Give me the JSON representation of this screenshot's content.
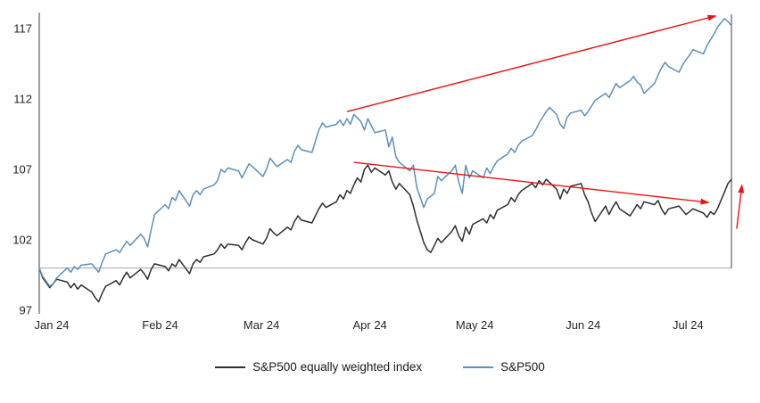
{
  "chart_data": {
    "type": "line",
    "x_axis": {
      "tick_labels": [
        "Jan 24",
        "Feb 24",
        "Mar 24",
        "Apr 24",
        "May 24",
        "Jun 24",
        "Jul 24"
      ],
      "tick_days": [
        0,
        31,
        60,
        91,
        121,
        152,
        182
      ],
      "domain_days": [
        0,
        198
      ]
    },
    "y_axis": {
      "tick_values": [
        97,
        102,
        107,
        112,
        117
      ],
      "range": [
        96.2,
        118.2
      ]
    },
    "reference_line": {
      "value": 100,
      "color": "#a6a6a6"
    },
    "axis_color": "#404040",
    "annotation_color": "#ee1111",
    "series": [
      {
        "name": "S&P500 equally weighted index",
        "color": "#2e2e2e",
        "points": [
          [
            0,
            100.0
          ],
          [
            1,
            99.3
          ],
          [
            3,
            98.6
          ],
          [
            4,
            98.9
          ],
          [
            5,
            99.2
          ],
          [
            8,
            99.0
          ],
          [
            9,
            98.6
          ],
          [
            10,
            98.9
          ],
          [
            11,
            98.5
          ],
          [
            12,
            98.8
          ],
          [
            15,
            98.3
          ],
          [
            16,
            97.9
          ],
          [
            17,
            97.6
          ],
          [
            18,
            98.2
          ],
          [
            19,
            98.7
          ],
          [
            22,
            99.1
          ],
          [
            23,
            98.8
          ],
          [
            24,
            99.3
          ],
          [
            25,
            99.7
          ],
          [
            26,
            99.3
          ],
          [
            29,
            99.9
          ],
          [
            30,
            99.6
          ],
          [
            31,
            99.2
          ],
          [
            32,
            99.9
          ],
          [
            33,
            100.3
          ],
          [
            36,
            100.1
          ],
          [
            37,
            99.8
          ],
          [
            38,
            100.3
          ],
          [
            39,
            100.1
          ],
          [
            40,
            100.6
          ],
          [
            43,
            99.6
          ],
          [
            44,
            100.3
          ],
          [
            45,
            100.6
          ],
          [
            46,
            100.4
          ],
          [
            47,
            100.8
          ],
          [
            50,
            101.0
          ],
          [
            51,
            101.3
          ],
          [
            52,
            101.7
          ],
          [
            53,
            101.4
          ],
          [
            54,
            101.7
          ],
          [
            57,
            101.6
          ],
          [
            58,
            101.3
          ],
          [
            59,
            101.8
          ],
          [
            60,
            102.2
          ],
          [
            61,
            102.0
          ],
          [
            64,
            101.7
          ],
          [
            65,
            102.1
          ],
          [
            66,
            102.8
          ],
          [
            67,
            102.5
          ],
          [
            68,
            102.3
          ],
          [
            71,
            102.9
          ],
          [
            72,
            102.7
          ],
          [
            73,
            103.3
          ],
          [
            74,
            103.7
          ],
          [
            75,
            103.4
          ],
          [
            78,
            103.2
          ],
          [
            79,
            103.7
          ],
          [
            80,
            104.2
          ],
          [
            81,
            104.6
          ],
          [
            82,
            104.3
          ],
          [
            85,
            104.7
          ],
          [
            86,
            105.2
          ],
          [
            87,
            104.9
          ],
          [
            88,
            105.5
          ],
          [
            89,
            105.3
          ],
          [
            90,
            105.9
          ],
          [
            91,
            106.4
          ],
          [
            92,
            106.1
          ],
          [
            93,
            107.0
          ],
          [
            94,
            107.3
          ],
          [
            95,
            106.8
          ],
          [
            96,
            107.1
          ],
          [
            99,
            106.6
          ],
          [
            100,
            106.9
          ],
          [
            101,
            106.1
          ],
          [
            102,
            105.6
          ],
          [
            103,
            106.0
          ],
          [
            106,
            105.2
          ],
          [
            107,
            104.4
          ],
          [
            108,
            103.4
          ],
          [
            109,
            102.6
          ],
          [
            110,
            101.8
          ],
          [
            111,
            101.3
          ],
          [
            112,
            101.1
          ],
          [
            113,
            101.6
          ],
          [
            114,
            102.1
          ],
          [
            115,
            101.8
          ],
          [
            118,
            102.6
          ],
          [
            119,
            103.0
          ],
          [
            120,
            102.3
          ],
          [
            121,
            101.9
          ],
          [
            122,
            102.9
          ],
          [
            123,
            102.4
          ],
          [
            124,
            103.1
          ],
          [
            127,
            103.5
          ],
          [
            128,
            103.2
          ],
          [
            129,
            103.8
          ],
          [
            130,
            103.5
          ],
          [
            131,
            104.1
          ],
          [
            134,
            104.5
          ],
          [
            135,
            105.0
          ],
          [
            136,
            104.7
          ],
          [
            137,
            105.2
          ],
          [
            138,
            105.5
          ],
          [
            141,
            106.0
          ],
          [
            142,
            105.7
          ],
          [
            143,
            106.2
          ],
          [
            144,
            105.9
          ],
          [
            145,
            106.3
          ],
          [
            148,
            105.6
          ],
          [
            149,
            104.9
          ],
          [
            150,
            105.6
          ],
          [
            151,
            105.3
          ],
          [
            152,
            105.8
          ],
          [
            155,
            106.0
          ],
          [
            156,
            105.2
          ],
          [
            157,
            104.7
          ],
          [
            158,
            103.9
          ],
          [
            159,
            103.3
          ],
          [
            162,
            104.4
          ],
          [
            163,
            103.8
          ],
          [
            164,
            104.3
          ],
          [
            165,
            104.7
          ],
          [
            166,
            104.2
          ],
          [
            169,
            103.7
          ],
          [
            170,
            104.1
          ],
          [
            171,
            104.5
          ],
          [
            172,
            104.2
          ],
          [
            173,
            104.7
          ],
          [
            176,
            104.5
          ],
          [
            177,
            104.8
          ],
          [
            178,
            104.2
          ],
          [
            179,
            103.8
          ],
          [
            180,
            104.2
          ],
          [
            183,
            104.4
          ],
          [
            184,
            104.1
          ],
          [
            185,
            103.8
          ],
          [
            186,
            104.0
          ],
          [
            187,
            104.2
          ],
          [
            190,
            103.9
          ],
          [
            191,
            103.6
          ],
          [
            192,
            104.0
          ],
          [
            193,
            103.8
          ],
          [
            194,
            104.2
          ],
          [
            196,
            105.4
          ],
          [
            197,
            106.0
          ],
          [
            198,
            106.3
          ]
        ]
      },
      {
        "name": "S&P500",
        "color": "#5b8fbe",
        "points": [
          [
            0,
            100.0
          ],
          [
            1,
            99.4
          ],
          [
            3,
            98.7
          ],
          [
            4,
            98.9
          ],
          [
            5,
            99.3
          ],
          [
            8,
            100.0
          ],
          [
            9,
            99.7
          ],
          [
            10,
            100.1
          ],
          [
            11,
            99.9
          ],
          [
            12,
            100.2
          ],
          [
            15,
            100.3
          ],
          [
            16,
            100.0
          ],
          [
            17,
            99.7
          ],
          [
            18,
            100.4
          ],
          [
            19,
            101.0
          ],
          [
            22,
            101.3
          ],
          [
            23,
            101.1
          ],
          [
            24,
            101.5
          ],
          [
            25,
            101.9
          ],
          [
            26,
            101.6
          ],
          [
            29,
            102.4
          ],
          [
            30,
            102.1
          ],
          [
            31,
            101.5
          ],
          [
            32,
            102.7
          ],
          [
            33,
            103.8
          ],
          [
            36,
            104.5
          ],
          [
            37,
            104.2
          ],
          [
            38,
            105.0
          ],
          [
            39,
            104.8
          ],
          [
            40,
            105.5
          ],
          [
            43,
            104.4
          ],
          [
            44,
            105.2
          ],
          [
            45,
            105.5
          ],
          [
            46,
            105.2
          ],
          [
            47,
            105.6
          ],
          [
            50,
            105.9
          ],
          [
            51,
            106.2
          ],
          [
            52,
            107.0
          ],
          [
            53,
            106.8
          ],
          [
            54,
            107.1
          ],
          [
            57,
            106.9
          ],
          [
            58,
            106.4
          ],
          [
            59,
            106.9
          ],
          [
            60,
            107.4
          ],
          [
            61,
            107.2
          ],
          [
            64,
            106.5
          ],
          [
            65,
            107.0
          ],
          [
            66,
            107.8
          ],
          [
            67,
            107.5
          ],
          [
            68,
            107.2
          ],
          [
            71,
            107.7
          ],
          [
            72,
            107.5
          ],
          [
            73,
            108.3
          ],
          [
            74,
            108.7
          ],
          [
            75,
            108.4
          ],
          [
            78,
            108.2
          ],
          [
            79,
            109.0
          ],
          [
            80,
            109.8
          ],
          [
            81,
            110.3
          ],
          [
            82,
            110.0
          ],
          [
            85,
            110.2
          ],
          [
            86,
            110.5
          ],
          [
            87,
            110.1
          ],
          [
            88,
            110.6
          ],
          [
            89,
            110.2
          ],
          [
            90,
            110.9
          ],
          [
            92,
            110.4
          ],
          [
            93,
            109.8
          ],
          [
            94,
            110.6
          ],
          [
            95,
            110.1
          ],
          [
            96,
            109.6
          ],
          [
            99,
            109.8
          ],
          [
            100,
            108.6
          ],
          [
            101,
            109.3
          ],
          [
            102,
            107.9
          ],
          [
            103,
            107.5
          ],
          [
            106,
            106.9
          ],
          [
            107,
            107.3
          ],
          [
            108,
            105.7
          ],
          [
            109,
            105.0
          ],
          [
            110,
            104.3
          ],
          [
            111,
            104.9
          ],
          [
            113,
            105.3
          ],
          [
            114,
            106.5
          ],
          [
            115,
            106.2
          ],
          [
            118,
            106.9
          ],
          [
            119,
            107.3
          ],
          [
            120,
            106.1
          ],
          [
            121,
            105.3
          ],
          [
            122,
            107.3
          ],
          [
            123,
            106.4
          ],
          [
            124,
            106.9
          ],
          [
            127,
            106.4
          ],
          [
            128,
            107.1
          ],
          [
            129,
            106.7
          ],
          [
            130,
            107.2
          ],
          [
            131,
            107.6
          ],
          [
            134,
            108.1
          ],
          [
            135,
            108.5
          ],
          [
            136,
            108.2
          ],
          [
            137,
            108.7
          ],
          [
            138,
            109.0
          ],
          [
            141,
            109.4
          ],
          [
            142,
            109.8
          ],
          [
            143,
            110.3
          ],
          [
            144,
            110.7
          ],
          [
            145,
            111.1
          ],
          [
            146,
            111.4
          ],
          [
            148,
            110.9
          ],
          [
            149,
            110.2
          ],
          [
            150,
            109.9
          ],
          [
            151,
            110.7
          ],
          [
            152,
            111.0
          ],
          [
            155,
            111.2
          ],
          [
            156,
            110.8
          ],
          [
            157,
            111.1
          ],
          [
            158,
            111.5
          ],
          [
            159,
            111.9
          ],
          [
            162,
            112.4
          ],
          [
            163,
            112.1
          ],
          [
            164,
            112.6
          ],
          [
            165,
            113.1
          ],
          [
            166,
            112.8
          ],
          [
            169,
            113.3
          ],
          [
            170,
            113.6
          ],
          [
            171,
            113.2
          ],
          [
            172,
            113.0
          ],
          [
            173,
            112.4
          ],
          [
            176,
            113.1
          ],
          [
            177,
            113.7
          ],
          [
            178,
            114.2
          ],
          [
            179,
            114.6
          ],
          [
            180,
            114.3
          ],
          [
            183,
            113.9
          ],
          [
            184,
            114.4
          ],
          [
            185,
            114.8
          ],
          [
            186,
            115.1
          ],
          [
            187,
            115.5
          ],
          [
            190,
            115.2
          ],
          [
            191,
            115.8
          ],
          [
            192,
            116.2
          ],
          [
            193,
            116.6
          ],
          [
            194,
            117.1
          ],
          [
            196,
            117.7
          ],
          [
            197,
            117.5
          ],
          [
            198,
            117.2
          ]
        ]
      }
    ],
    "annotations": [
      {
        "type": "arrow",
        "from_day": 88,
        "from_value": 111.1,
        "to_day": 193.5,
        "to_value": 117.9
      },
      {
        "type": "arrow",
        "from_day": 90,
        "from_value": 107.5,
        "to_day": 191.5,
        "to_value": 104.65
      },
      {
        "type": "arrow",
        "from_day": 199.5,
        "from_value": 102.8,
        "to_day": 201,
        "to_value": 105.9
      }
    ],
    "legend": {
      "position": "bottom",
      "items": [
        {
          "label": "S&P500 equally weighted index",
          "color": "#2e2e2e"
        },
        {
          "label": "S&P500",
          "color": "#5b8fbe"
        }
      ]
    }
  }
}
